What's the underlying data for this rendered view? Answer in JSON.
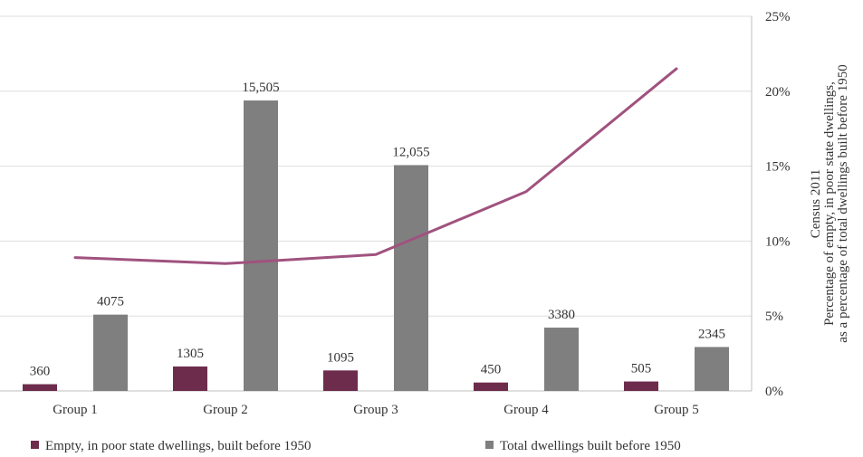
{
  "chart_data": {
    "type": "bar",
    "categories": [
      "Group 1",
      "Group 2",
      "Group 3",
      "Group 4",
      "Group 5"
    ],
    "series": [
      {
        "name": "Empty, in poor state dwellings, built before 1950",
        "type": "bar",
        "values": [
          360,
          1305,
          1095,
          450,
          505
        ],
        "labels": [
          "360",
          "1305",
          "1095",
          "450",
          "505"
        ],
        "color": "#6e2c4d"
      },
      {
        "name": "Total dwellings built before 1950",
        "type": "bar",
        "values": [
          4075,
          15505,
          12055,
          3380,
          2345
        ],
        "labels": [
          "4075",
          "15,505",
          "12,055",
          "3380",
          "2345"
        ],
        "color": "#7f7f7f"
      },
      {
        "type": "line",
        "axis": "right",
        "values": [
          8.9,
          8.5,
          9.1,
          13.3,
          21.5
        ],
        "color": "#a0527f"
      }
    ],
    "right_axis": {
      "ticks": [
        "0%",
        "5%",
        "10%",
        "15%",
        "20%",
        "25%"
      ],
      "range": [
        0,
        25
      ],
      "title_lines": [
        "Census 2011",
        "Percentage of  empty, in poor state dwellings,",
        "as a percentage of total dwellings built before 1950"
      ]
    },
    "left_axis_range": [
      0,
      20000
    ],
    "gridlines": true,
    "legend_position": "bottom"
  }
}
